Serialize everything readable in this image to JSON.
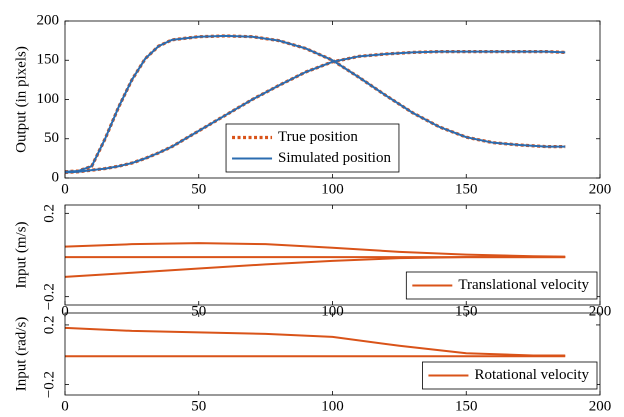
{
  "chart_data": [
    {
      "type": "line",
      "ylabel": "Output (in pixels)",
      "x": [
        0,
        5,
        10,
        15,
        20,
        25,
        30,
        35,
        40,
        50,
        60,
        70,
        80,
        90,
        100,
        110,
        120,
        130,
        140,
        150,
        160,
        170,
        180,
        187
      ],
      "series": [
        {
          "name": "True position",
          "color": "#d95319",
          "linestyle": "dotted",
          "values": [
            8,
            9,
            15,
            50,
            90,
            125,
            152,
            168,
            176,
            180,
            181,
            180,
            175,
            165,
            150,
            128,
            105,
            83,
            65,
            52,
            45,
            42,
            40,
            40
          ]
        },
        {
          "color": "#d95319",
          "linestyle": "dotted",
          "values": [
            7,
            8,
            10,
            12,
            15,
            19,
            25,
            32,
            40,
            60,
            80,
            100,
            118,
            135,
            148,
            155,
            158,
            160,
            161,
            161,
            161,
            161,
            161,
            160
          ]
        },
        {
          "name": "Simulated position",
          "color": "#2b6cb0",
          "linestyle": "solid",
          "values": [
            8,
            9,
            15,
            50,
            90,
            125,
            152,
            168,
            176,
            180,
            181,
            180,
            175,
            165,
            150,
            128,
            105,
            83,
            65,
            52,
            45,
            42,
            40,
            40
          ]
        },
        {
          "color": "#2b6cb0",
          "linestyle": "solid",
          "values": [
            7,
            8,
            10,
            12,
            15,
            19,
            25,
            32,
            40,
            60,
            80,
            100,
            118,
            135,
            148,
            155,
            158,
            160,
            161,
            161,
            161,
            161,
            161,
            160
          ]
        }
      ],
      "xlim": [
        0,
        200
      ],
      "xticks": [
        0,
        50,
        100,
        150,
        200
      ],
      "ylim": [
        0,
        200
      ],
      "yticks": [
        0,
        50,
        100,
        150,
        200
      ],
      "legend": "lower center"
    },
    {
      "type": "line",
      "ylabel": "Input (m/s)",
      "x": [
        0,
        25,
        50,
        75,
        100,
        125,
        150,
        175,
        187
      ],
      "series": [
        {
          "name": "Translational velocity",
          "color": "#d95319",
          "linestyle": "solid",
          "values": [
            0.04,
            0.052,
            0.057,
            0.052,
            0.035,
            0.015,
            0.002,
            -0.006,
            -0.008
          ]
        },
        {
          "color": "#d95319",
          "linestyle": "solid",
          "values": [
            -0.01,
            -0.01,
            -0.01,
            -0.01,
            -0.01,
            -0.01,
            -0.01,
            -0.01,
            -0.01
          ]
        },
        {
          "color": "#d95319",
          "linestyle": "solid",
          "values": [
            -0.105,
            -0.085,
            -0.065,
            -0.045,
            -0.028,
            -0.015,
            -0.01,
            -0.01,
            -0.01
          ]
        }
      ],
      "xlim": [
        0,
        200
      ],
      "xticks": [
        0,
        50,
        100,
        150,
        200
      ],
      "ylim": [
        -0.24,
        0.24
      ],
      "yticks": [
        {
          "value": -0.2,
          "label": "−0.2"
        },
        0.2
      ],
      "legend": "lower right"
    },
    {
      "type": "line",
      "ylabel": "Input (rad/s)",
      "x": [
        0,
        25,
        50,
        75,
        100,
        125,
        150,
        175,
        187
      ],
      "series": [
        {
          "name": "Rotational velocity",
          "color": "#d95319",
          "linestyle": "solid",
          "values": [
            0.18,
            0.16,
            0.15,
            0.14,
            0.12,
            0.06,
            0.01,
            -0.005,
            -0.005
          ]
        },
        {
          "color": "#d95319",
          "linestyle": "solid",
          "values": [
            -0.01,
            -0.01,
            -0.01,
            -0.01,
            -0.01,
            -0.01,
            -0.01,
            -0.01,
            -0.01
          ]
        }
      ],
      "xlim": [
        0,
        200
      ],
      "xticks": [
        0,
        50,
        100,
        150,
        200
      ],
      "ylim": [
        -0.27,
        0.28
      ],
      "yticks": [
        {
          "value": -0.2,
          "label": "−0.2"
        },
        0.2
      ],
      "legend": "lower right"
    }
  ]
}
